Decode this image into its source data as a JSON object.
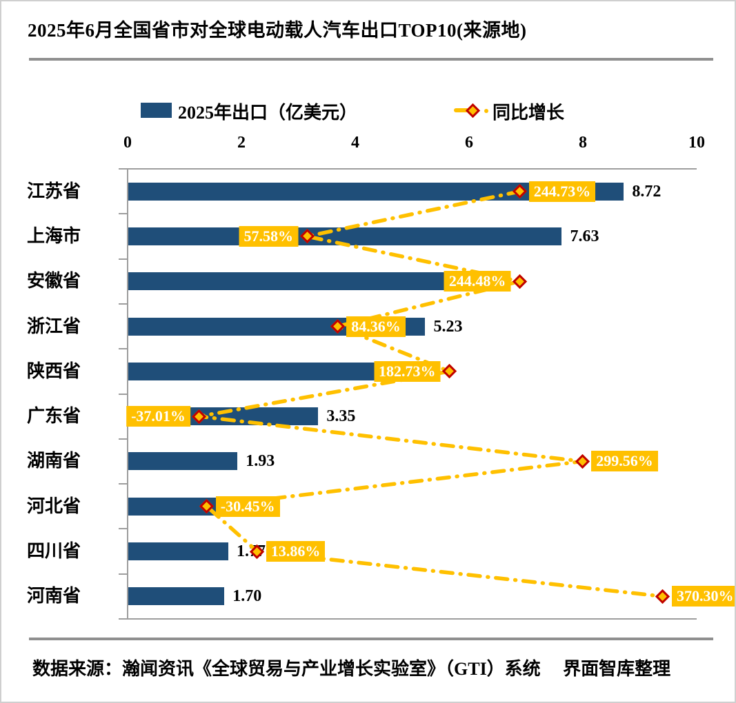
{
  "title": "2025年6月全国省市对全球电动载人汽车出口TOP10(来源地)",
  "legend": {
    "bar_label": "2025年出口（亿美元）",
    "line_label": "同比增长"
  },
  "footer": {
    "source": "数据来源：瀚闻资讯《全球贸易与产业增长实验室》（GTI）系统　 界面智库整理"
  },
  "colors": {
    "bar": "#1F4E79",
    "accent": "#FFC000",
    "diamond_border": "#C00000",
    "axis_gray": "#9d9d9d",
    "rule_gray": "#8f8f8f",
    "growth_text": "#ffffff",
    "value_text": "#000000"
  },
  "chart_data": {
    "type": "bar",
    "orientation": "horizontal",
    "title": "2025年6月全国省市对全球电动载人汽车出口TOP10(来源地)",
    "categories": [
      "江苏省",
      "上海市",
      "安徽省",
      "浙江省",
      "陕西省",
      "广东省",
      "湖南省",
      "河北省",
      "四川省",
      "河南省"
    ],
    "x_axis_ticks": [
      0,
      2,
      4,
      6,
      8,
      10
    ],
    "xlim": [
      0,
      10
    ],
    "growth_axis_range": [
      -100,
      400
    ],
    "legend_position": "top",
    "grid": false,
    "series": [
      {
        "name": "2025年出口（亿美元）",
        "values": [
          8.72,
          7.63,
          5.66,
          5.23,
          4.45,
          3.35,
          1.93,
          1.56,
          1.77,
          1.7
        ],
        "value_labels": [
          "8.72",
          "7.63",
          "",
          "5.23",
          "",
          "3.35",
          "1.93",
          "",
          "1.77",
          "1.70"
        ]
      },
      {
        "name": "同比增长",
        "values": [
          244.73,
          57.58,
          244.48,
          84.36,
          182.73,
          -37.01,
          299.56,
          -30.45,
          13.86,
          370.3
        ],
        "labels": [
          "244.73%",
          "57.58%",
          "244.48%",
          "84.36%",
          "182.73%",
          "-37.01%",
          "299.56%",
          "-30.45%",
          "13.86%",
          "370.30%"
        ],
        "label_side": [
          "right",
          "left",
          "left",
          "right",
          "left",
          "left",
          "right",
          "right",
          "right",
          "right"
        ]
      }
    ]
  }
}
